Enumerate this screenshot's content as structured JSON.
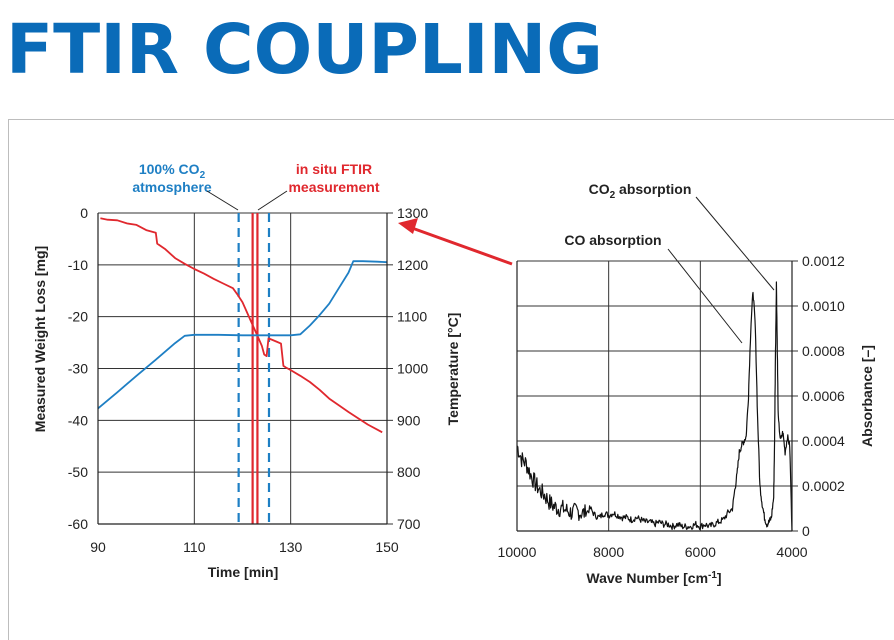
{
  "header": {
    "title": "FTIR COUPLING"
  },
  "colors": {
    "title": "#0a6bb8",
    "blue": "#1e7fc4",
    "red": "#e0282e",
    "black": "#111111"
  },
  "chart_data": [
    {
      "type": "line",
      "xlabel": "Time [min]",
      "ylabel": "Measured Weight Loss [mg]",
      "ylabel_right": "Temperature [°C]",
      "xlim": [
        90,
        150
      ],
      "ylim": [
        -60,
        0
      ],
      "ylim_right": [
        700,
        1300
      ],
      "xticks": [
        "90",
        "110",
        "130",
        "150"
      ],
      "yticks": [
        "0",
        "-10",
        "-20",
        "-30",
        "-40",
        "-50",
        "-60"
      ],
      "yticks_right": [
        "1300",
        "1200",
        "1100",
        "1000",
        "900",
        "800",
        "700"
      ],
      "grid": true,
      "annotations": {
        "co2_line1": "100% CO",
        "co2_sub": "2",
        "co2_line2": "atmosphere",
        "ftir_line1": "in situ FTIR",
        "ftir_line2": "measurement"
      },
      "markers": {
        "dashed_blue_x": [
          119.2,
          125.5
        ],
        "solid_red_x": [
          122.1,
          123.1
        ]
      },
      "series": [
        {
          "color": "red",
          "axis": "left",
          "x": [
            90.5,
            92,
            94,
            96,
            98,
            100,
            102,
            102.3,
            104,
            106,
            108,
            110,
            112,
            114,
            116,
            118,
            119,
            120,
            121,
            122,
            123,
            124,
            124.5,
            125,
            125.4,
            126,
            127,
            128,
            128.5,
            129,
            130,
            132,
            134,
            136,
            138,
            140,
            142,
            144,
            146,
            148,
            149
          ],
          "values": [
            -1,
            -1.3,
            -1.4,
            -2,
            -2.3,
            -3.3,
            -3.8,
            -5.9,
            -7,
            -8.7,
            -9.8,
            -10.8,
            -11.7,
            -12.7,
            -13.6,
            -14.5,
            -15.8,
            -17.2,
            -19.3,
            -21.4,
            -23.5,
            -25.6,
            -27.3,
            -27.6,
            -24.2,
            -24.4,
            -24.8,
            -25.2,
            -29.5,
            -29.8,
            -30.3,
            -31.4,
            -32.6,
            -34.1,
            -35.8,
            -37.1,
            -38.4,
            -39.6,
            -40.8,
            -41.8,
            -42.3
          ]
        },
        {
          "color": "blue",
          "axis": "right",
          "x": [
            90,
            94,
            98,
            102,
            106,
            108,
            110,
            115,
            120,
            125,
            130,
            132,
            134,
            136,
            138,
            140,
            142,
            143,
            145,
            148,
            150
          ],
          "values": [
            923,
            954,
            986,
            1017,
            1049,
            1063,
            1065,
            1065,
            1064,
            1064,
            1064,
            1066,
            1083,
            1103,
            1125,
            1155,
            1185,
            1207,
            1207,
            1206,
            1205
          ]
        }
      ]
    },
    {
      "type": "line",
      "xlabel": "Wave Number [cm-1]",
      "xlabel_main": "Wave Number [cm",
      "xlabel_sup": "-1",
      "xlabel_end": "]",
      "ylabel": "Absorbance [–]",
      "xlim": [
        10000,
        4000
      ],
      "ylim": [
        0,
        0.0012
      ],
      "xticks": [
        "10000",
        "8000",
        "6000",
        "4000"
      ],
      "yticks": [
        "0",
        "0.0002",
        "0.0004",
        "0.0006",
        "0.0008",
        "0.0010",
        "0.0012"
      ],
      "grid": true,
      "annotations": {
        "co2_main": "CO",
        "co2_sub": "2",
        "co2_rest": " absorption",
        "co": "CO absorption"
      },
      "series": [
        {
          "color": "black",
          "x": [
            10000,
            9900,
            9800,
            9700,
            9600,
            9500,
            9400,
            9300,
            9200,
            9100,
            9000,
            8900,
            8800,
            8700,
            8600,
            8500,
            8400,
            8300,
            8200,
            8100,
            8000,
            7900,
            7800,
            7700,
            7600,
            7500,
            7400,
            7300,
            7200,
            7100,
            7000,
            6900,
            6800,
            6700,
            6600,
            6500,
            6400,
            6300,
            6200,
            6100,
            6000,
            5900,
            5800,
            5700,
            5600,
            5500,
            5400,
            5300,
            5250,
            5200,
            5150,
            5100,
            5050,
            5000,
            4950,
            4900,
            4850,
            4800,
            4750,
            4700,
            4650,
            4600,
            4550,
            4500,
            4450,
            4400,
            4380,
            4360,
            4340,
            4320,
            4300,
            4250,
            4200,
            4150,
            4100,
            4050,
            4000
          ],
          "values": [
            0.00038,
            0.00032,
            0.0003,
            0.00025,
            0.00021,
            0.00018,
            0.00016,
            0.00013,
            0.00011,
            0.0001,
            0.0001,
            9e-05,
            8e-05,
            9e-05,
            8e-05,
            8e-05,
            0.0001,
            7e-05,
            6e-05,
            8e-05,
            7e-05,
            8e-05,
            7e-05,
            6e-05,
            6e-05,
            5e-05,
            6e-05,
            5e-05,
            4e-05,
            4e-05,
            3e-05,
            4e-05,
            3e-05,
            3e-05,
            2e-05,
            3e-05,
            2e-05,
            2e-05,
            2e-05,
            3e-05,
            2e-05,
            3e-05,
            2e-05,
            3e-05,
            4e-05,
            5e-05,
            8e-05,
            0.0001,
            0.00018,
            0.00025,
            0.00035,
            0.00038,
            0.0004,
            0.00042,
            0.0006,
            0.0009,
            0.00107,
            0.0009,
            0.0005,
            0.0002,
            0.00012,
            6e-05,
            3e-05,
            4e-05,
            6e-05,
            0.00015,
            0.0004,
            0.0008,
            0.0011,
            0.0008,
            0.0005,
            0.0004,
            0.00044,
            0.00035,
            0.00042,
            0.00038,
            0.0
          ]
        }
      ]
    }
  ]
}
